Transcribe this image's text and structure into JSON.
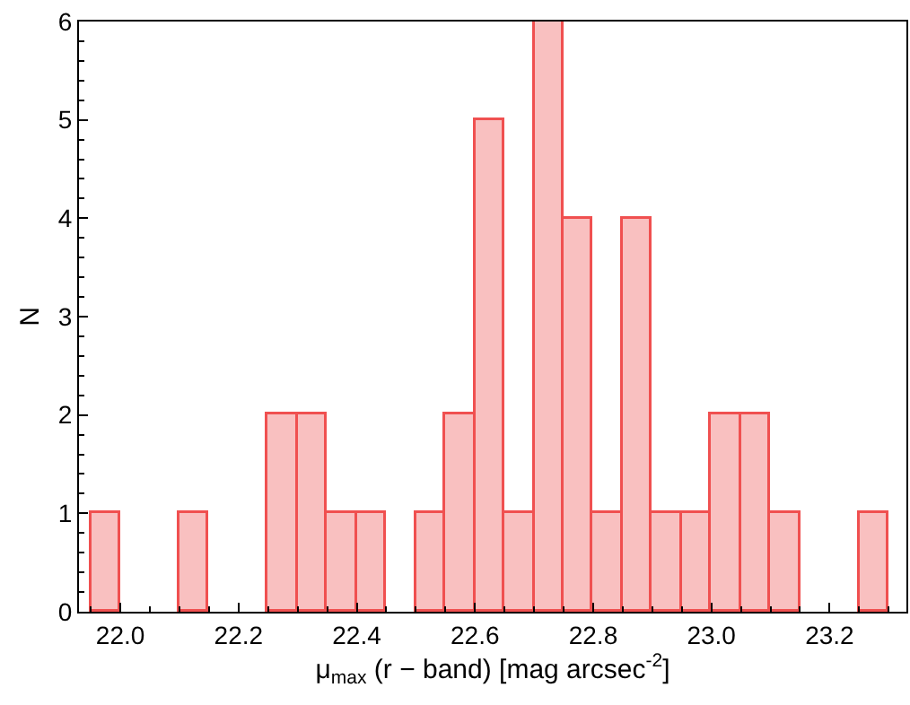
{
  "chart_data": {
    "type": "histogram",
    "xlabel": "μ$_{max}$ (r − band) [mag arcsec$^{-2}$]",
    "ylabel": "N",
    "bins": [
      21.95,
      22.0,
      22.05,
      22.1,
      22.15,
      22.2,
      22.25,
      22.3,
      22.35,
      22.4,
      22.45,
      22.5,
      22.55,
      22.6,
      22.65,
      22.7,
      22.75,
      22.8,
      22.85,
      22.9,
      22.95,
      23.0,
      23.05,
      23.1,
      23.15,
      23.2,
      23.25,
      23.3
    ],
    "values": [
      1,
      0,
      0,
      1,
      0,
      0,
      2,
      2,
      1,
      1,
      0,
      1,
      2,
      5,
      1,
      6,
      4,
      1,
      4,
      1,
      1,
      2,
      2,
      1,
      0,
      0,
      1
    ],
    "color": "#f9c0c0",
    "xlim": [
      21.93,
      23.33
    ],
    "ylim": [
      0,
      6
    ],
    "xticks": [
      {
        "value": 22.0,
        "label": "22.0"
      },
      {
        "value": 22.2,
        "label": "22.2"
      },
      {
        "value": 22.4,
        "label": "22.4"
      },
      {
        "value": 22.6,
        "label": "22.6"
      },
      {
        "value": 22.8,
        "label": "22.8"
      },
      {
        "value": 23.0,
        "label": "23.0"
      },
      {
        "value": 23.2,
        "label": "23.2"
      }
    ],
    "yticks": [
      0,
      1,
      2,
      3,
      4,
      5,
      6
    ]
  }
}
